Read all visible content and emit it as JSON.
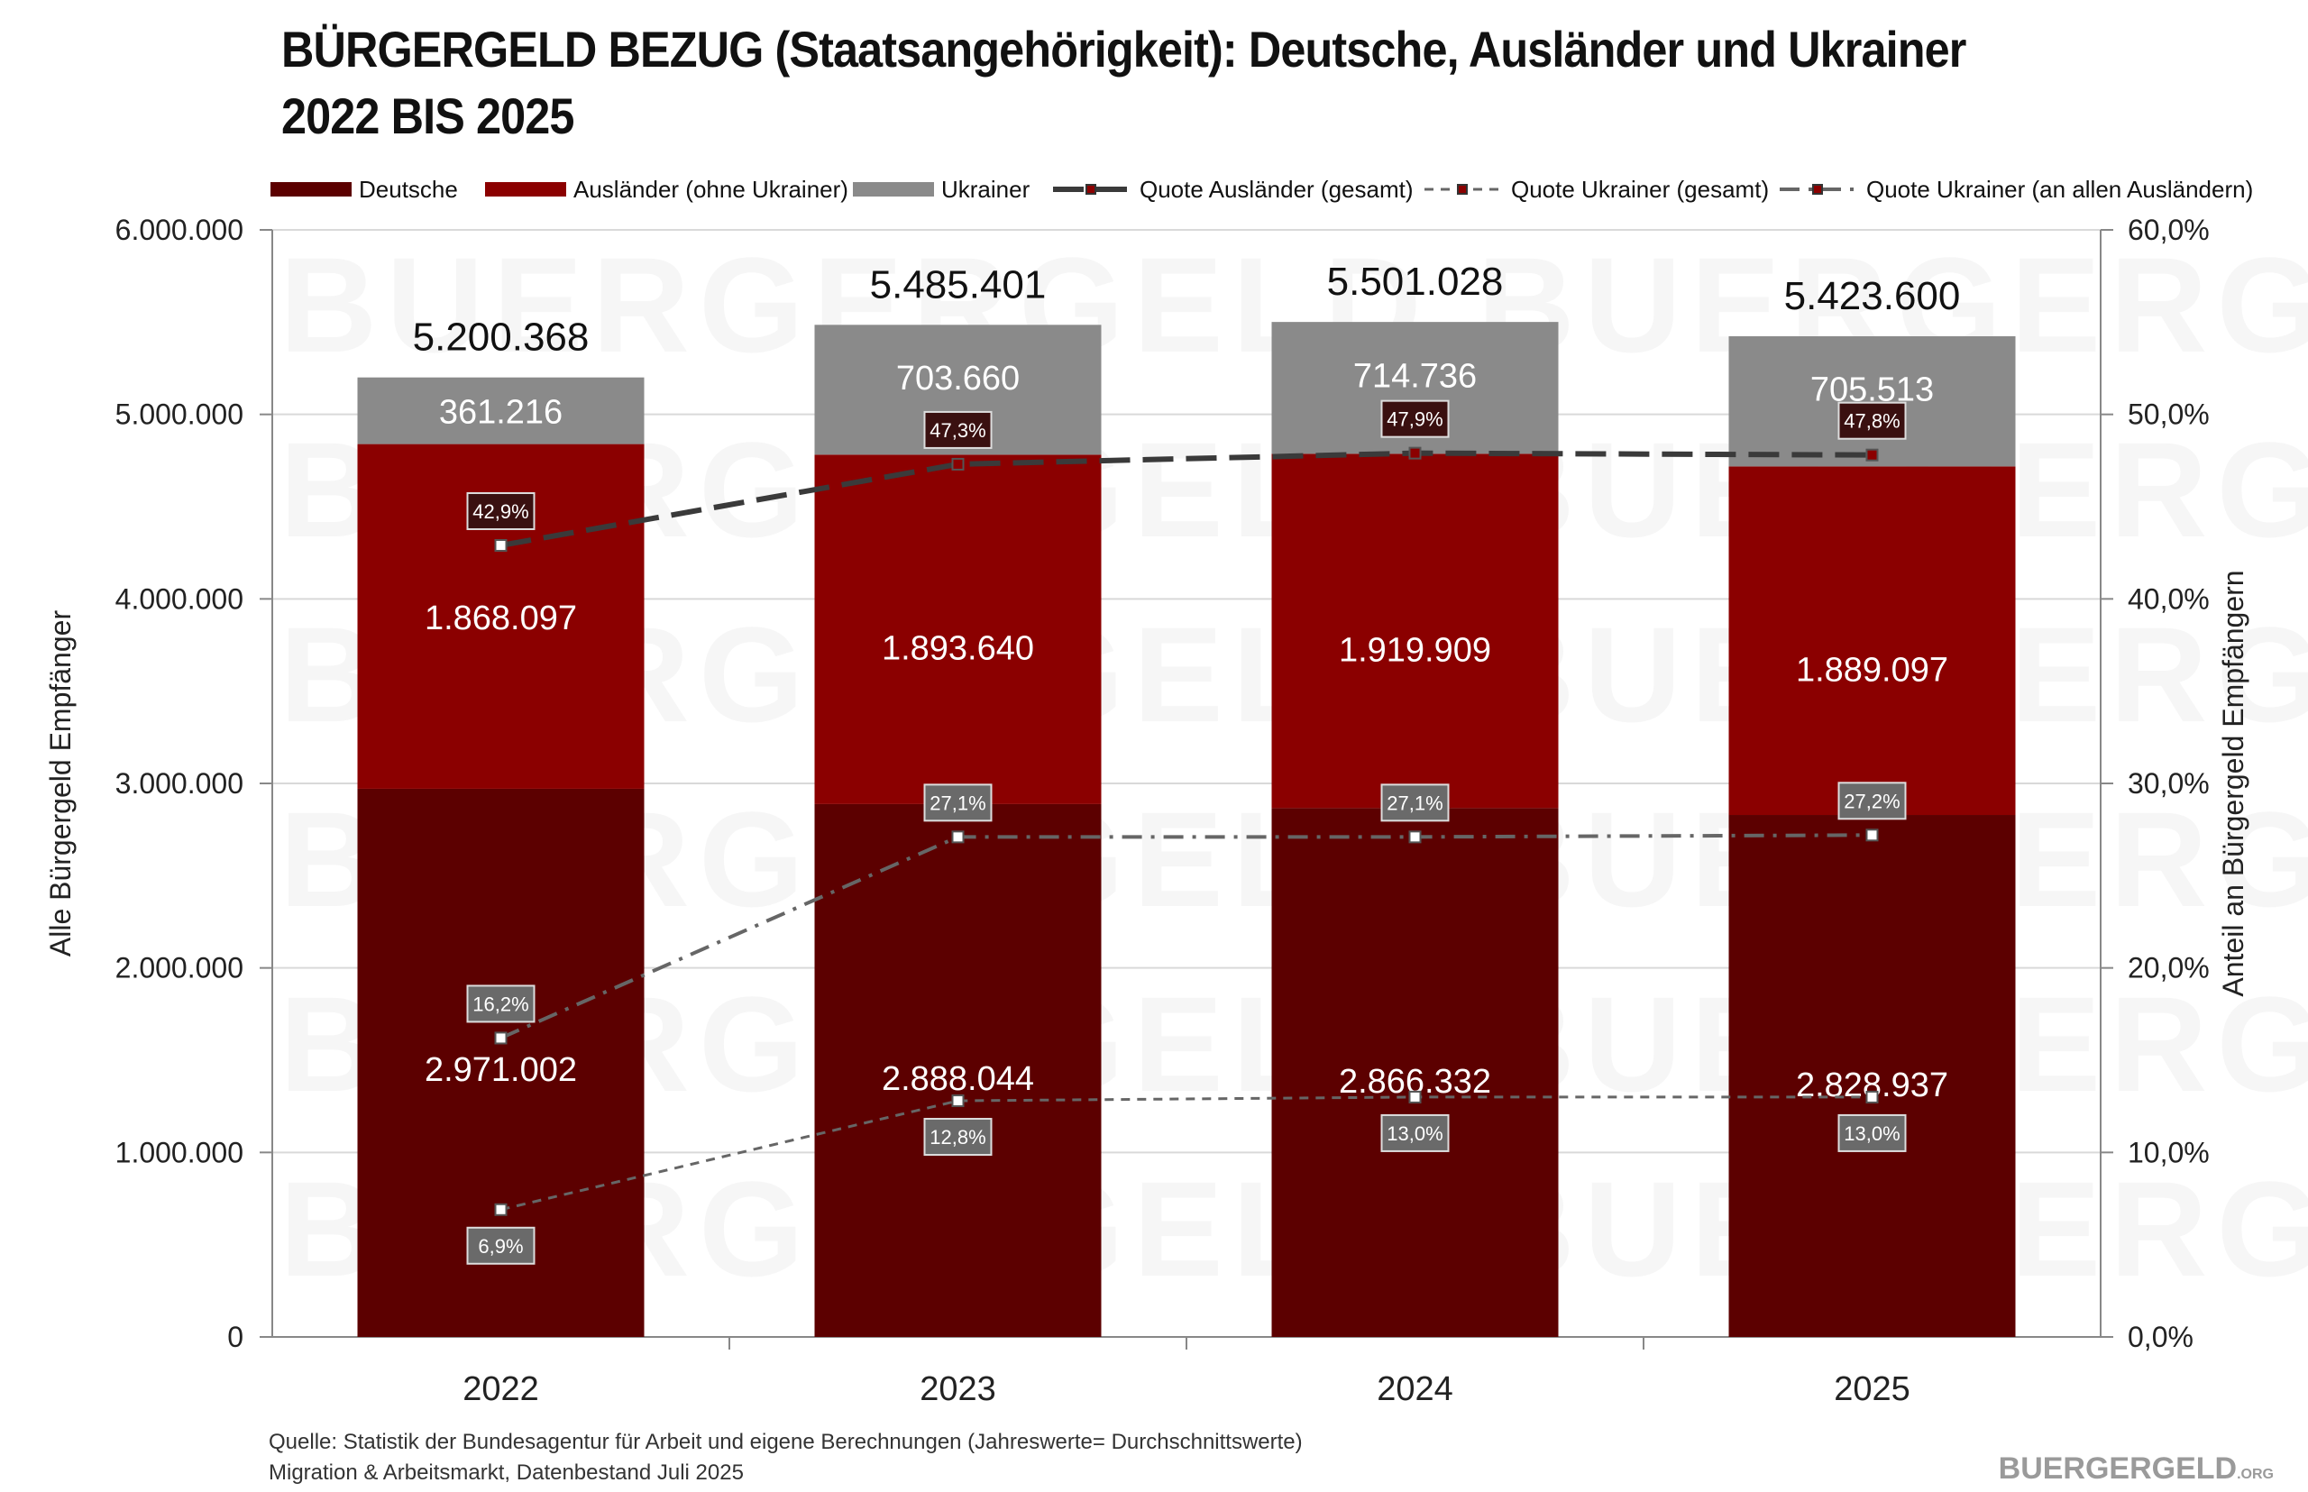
{
  "title_line1": "BÜRGERGELD BEZUG (Staatsangehörigkeit): Deutsche, Ausländer und Ukrainer",
  "title_line2": "2022 BIS 2025",
  "source_line1": "Quelle: Statistik der Bundesagentur für Arbeit und eigene Berechnungen (Jahreswerte= Durchschnittswerte)",
  "source_line2": "Migration & Arbeitsmarkt, Datenbestand Juli 2025",
  "brand": "BUERGERGELD",
  "brand_suffix": ".ORG",
  "watermark": "BUERGERGELD",
  "colors": {
    "deutsche": "#5c0000",
    "auslaender": "#8b0000",
    "ukrainer": "#8a8a8a",
    "line_dark": "#3a3a3a",
    "line_mid": "#666666"
  },
  "chart_data": {
    "type": "bar",
    "stacked": true,
    "categories": [
      "2022",
      "2023",
      "2024",
      "2025"
    ],
    "series": [
      {
        "name": "Deutsche",
        "values": [
          2971002,
          2888044,
          2866332,
          2828937
        ],
        "labels": [
          "2.971.002",
          "2.888.044",
          "2.866.332",
          "2.828.937"
        ]
      },
      {
        "name": "Ausländer (ohne Ukrainer)",
        "values": [
          1868097,
          1893640,
          1919909,
          1889097
        ],
        "labels": [
          "1.868.097",
          "1.893.640",
          "1.919.909",
          "1.889.097"
        ]
      },
      {
        "name": "Ukrainer",
        "values": [
          361216,
          703660,
          714736,
          705513
        ],
        "labels": [
          "361.216",
          "703.660",
          "714.736",
          "705.513"
        ]
      }
    ],
    "totals": [
      5200368,
      5485401,
      5501028,
      5423600
    ],
    "total_labels": [
      "5.200.368",
      "5.485.401",
      "5.501.028",
      "5.423.600"
    ],
    "lines": [
      {
        "name": "Quote Ausländer (gesamt)",
        "values": [
          42.9,
          47.3,
          47.9,
          47.8
        ],
        "labels": [
          "42,9%",
          "47,3%",
          "47,9%",
          "47,8%"
        ],
        "style": "long-dash"
      },
      {
        "name": "Quote Ukrainer (gesamt)",
        "values": [
          6.9,
          12.8,
          13.0,
          13.0
        ],
        "labels": [
          "6,9%",
          "12,8%",
          "13,0%",
          "13,0%"
        ],
        "style": "short-dash"
      },
      {
        "name": "Quote Ukrainer (an allen Ausländern)",
        "values": [
          16.2,
          27.1,
          27.1,
          27.2
        ],
        "labels": [
          "16,2%",
          "27,1%",
          "27,1%",
          "27,2%"
        ],
        "style": "dash-dot"
      }
    ],
    "ylabel": "Alle Bürgergeld Empfänger",
    "y2label": "Anteil an Bürgergeld Empfängern",
    "ylim": [
      0,
      6000000
    ],
    "y2lim": [
      0,
      60
    ],
    "yticks": [
      "0",
      "1.000.000",
      "2.000.000",
      "3.000.000",
      "4.000.000",
      "5.000.000",
      "6.000.000"
    ],
    "y2ticks": [
      "0,0%",
      "10,0%",
      "20,0%",
      "30,0%",
      "40,0%",
      "50,0%",
      "60,0%"
    ],
    "grid": true,
    "legend_position": "top"
  }
}
